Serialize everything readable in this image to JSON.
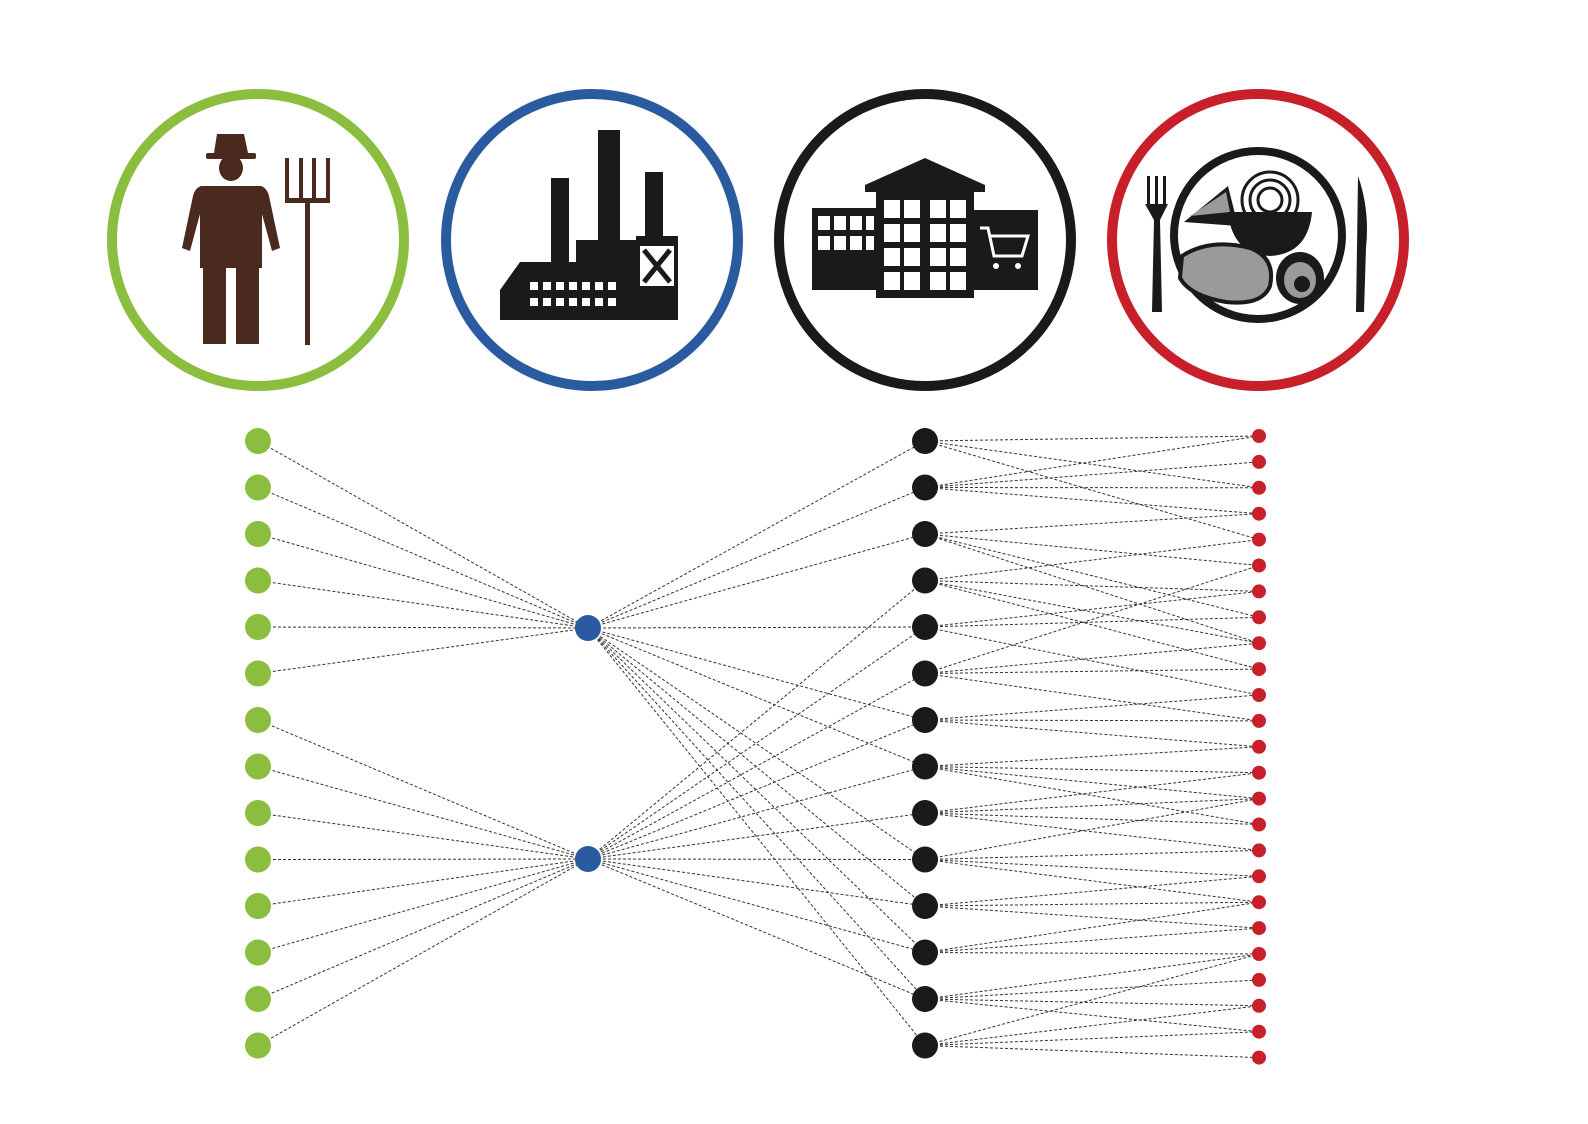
{
  "stages": [
    {
      "key": "farmer",
      "icon": "farmer-icon",
      "color": "#8bbd3f"
    },
    {
      "key": "processor",
      "icon": "factory-icon",
      "color": "#2a5ba0"
    },
    {
      "key": "retailer",
      "icon": "supermarket-icon",
      "color": "#1a1a1a"
    },
    {
      "key": "consumer",
      "icon": "meal-plate-icon",
      "color": "#c7202b"
    }
  ],
  "nodes": {
    "farmers": 14,
    "processors": 2,
    "retailers": 14,
    "consumers": 25
  },
  "links": {
    "farmer_to_processor": [
      [
        0,
        0
      ],
      [
        1,
        0
      ],
      [
        2,
        0
      ],
      [
        3,
        0
      ],
      [
        4,
        0
      ],
      [
        5,
        0
      ],
      [
        6,
        1
      ],
      [
        7,
        1
      ],
      [
        8,
        1
      ],
      [
        9,
        1
      ],
      [
        10,
        1
      ],
      [
        11,
        1
      ],
      [
        12,
        1
      ],
      [
        13,
        1
      ]
    ],
    "processor_to_retailer": [
      [
        0,
        0
      ],
      [
        0,
        1
      ],
      [
        0,
        2
      ],
      [
        0,
        4
      ],
      [
        0,
        6
      ],
      [
        0,
        7
      ],
      [
        0,
        9
      ],
      [
        0,
        10
      ],
      [
        0,
        11
      ],
      [
        0,
        12
      ],
      [
        0,
        13
      ],
      [
        1,
        3
      ],
      [
        1,
        4
      ],
      [
        1,
        5
      ],
      [
        1,
        6
      ],
      [
        1,
        7
      ],
      [
        1,
        8
      ],
      [
        1,
        9
      ],
      [
        1,
        10
      ],
      [
        1,
        11
      ],
      [
        1,
        12
      ]
    ],
    "retailer_to_consumer": [
      [
        0,
        0
      ],
      [
        0,
        2
      ],
      [
        0,
        4
      ],
      [
        1,
        0
      ],
      [
        1,
        1
      ],
      [
        1,
        2
      ],
      [
        1,
        3
      ],
      [
        2,
        3
      ],
      [
        2,
        5
      ],
      [
        2,
        7
      ],
      [
        2,
        8
      ],
      [
        3,
        4
      ],
      [
        3,
        6
      ],
      [
        3,
        8
      ],
      [
        3,
        9
      ],
      [
        4,
        6
      ],
      [
        4,
        7
      ],
      [
        4,
        10
      ],
      [
        5,
        5
      ],
      [
        5,
        8
      ],
      [
        5,
        9
      ],
      [
        5,
        11
      ],
      [
        6,
        10
      ],
      [
        6,
        11
      ],
      [
        6,
        12
      ],
      [
        7,
        12
      ],
      [
        7,
        13
      ],
      [
        7,
        14
      ],
      [
        7,
        15
      ],
      [
        8,
        13
      ],
      [
        8,
        14
      ],
      [
        8,
        15
      ],
      [
        8,
        16
      ],
      [
        9,
        14
      ],
      [
        9,
        16
      ],
      [
        9,
        17
      ],
      [
        9,
        18
      ],
      [
        10,
        17
      ],
      [
        10,
        18
      ],
      [
        10,
        19
      ],
      [
        11,
        18
      ],
      [
        11,
        19
      ],
      [
        11,
        20
      ],
      [
        12,
        20
      ],
      [
        12,
        21
      ],
      [
        12,
        22
      ],
      [
        12,
        23
      ],
      [
        13,
        20
      ],
      [
        13,
        22
      ],
      [
        13,
        23
      ],
      [
        13,
        24
      ]
    ]
  }
}
